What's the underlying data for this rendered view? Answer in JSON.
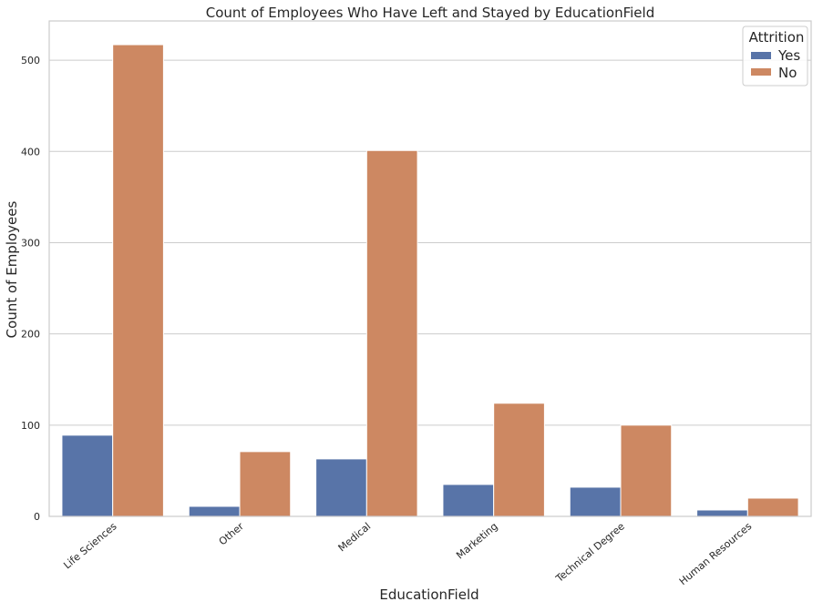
{
  "chart_data": {
    "type": "bar",
    "title": "Count of Employees Who Have Left and Stayed by EducationField",
    "xlabel": "EducationField",
    "ylabel": "Count of Employees",
    "categories": [
      "Life Sciences",
      "Other",
      "Medical",
      "Marketing",
      "Technical Degree",
      "Human Resources"
    ],
    "series": [
      {
        "name": "Yes",
        "color": "#5874a8",
        "values": [
          89,
          11,
          63,
          35,
          32,
          7
        ]
      },
      {
        "name": "No",
        "color": "#cd8862",
        "values": [
          517,
          71,
          401,
          124,
          100,
          20
        ]
      }
    ],
    "ylim": [
      0,
      543
    ],
    "yticks": [
      0,
      100,
      200,
      300,
      400,
      500
    ],
    "legend": {
      "title": "Attrition",
      "position": "top-right"
    },
    "grid": {
      "y": true,
      "x": false,
      "color": "#cccccc"
    },
    "background": "#ffffff",
    "frame_color": "#cccccc"
  }
}
